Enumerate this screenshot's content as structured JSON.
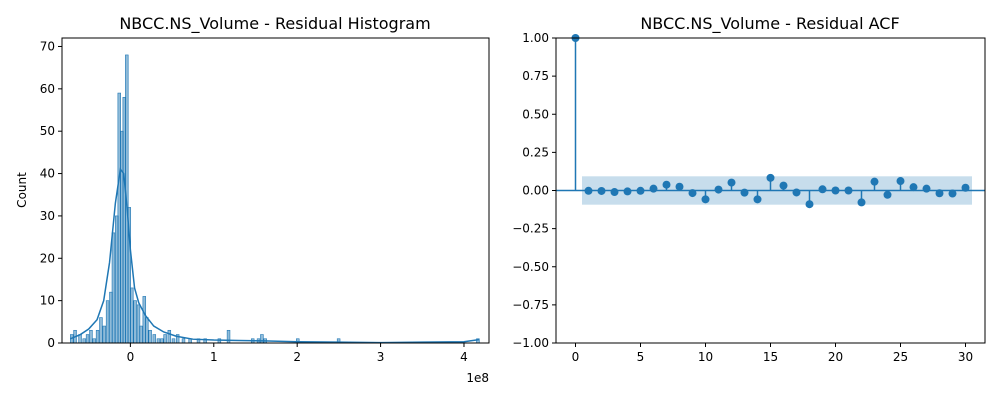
{
  "chart_data": [
    {
      "type": "bar",
      "title": "NBCC.NS_Volume - Residual Histogram",
      "xlabel": "",
      "ylabel": "Count",
      "x_offset_text": "1e8",
      "xlim": [
        -0.82,
        4.3
      ],
      "ylim": [
        0,
        72
      ],
      "x_ticks": [
        0,
        1,
        2,
        3,
        4
      ],
      "x_tick_labels": [
        "0",
        "1",
        "2",
        "3",
        "4"
      ],
      "y_ticks": [
        0,
        10,
        20,
        30,
        40,
        50,
        60,
        70
      ],
      "y_tick_labels": [
        "0",
        "10",
        "20",
        "30",
        "40",
        "50",
        "60",
        "70"
      ],
      "bin_width": 0.0338,
      "bins": [
        [
          -0.72,
          2
        ],
        [
          -0.68,
          3
        ],
        [
          -0.62,
          2
        ],
        [
          -0.57,
          1
        ],
        [
          -0.53,
          2
        ],
        [
          -0.49,
          3
        ],
        [
          -0.45,
          1
        ],
        [
          -0.41,
          3
        ],
        [
          -0.37,
          6
        ],
        [
          -0.33,
          4
        ],
        [
          -0.29,
          10
        ],
        [
          -0.25,
          12
        ],
        [
          -0.22,
          26
        ],
        [
          -0.18,
          30
        ],
        [
          -0.15,
          59
        ],
        [
          -0.12,
          50
        ],
        [
          -0.09,
          58
        ],
        [
          -0.06,
          68
        ],
        [
          -0.03,
          32
        ],
        [
          0.0,
          13
        ],
        [
          0.04,
          10
        ],
        [
          0.08,
          9
        ],
        [
          0.11,
          4
        ],
        [
          0.15,
          11
        ],
        [
          0.18,
          6
        ],
        [
          0.22,
          3
        ],
        [
          0.27,
          2
        ],
        [
          0.32,
          1
        ],
        [
          0.36,
          1
        ],
        [
          0.4,
          2
        ],
        [
          0.45,
          3
        ],
        [
          0.5,
          1
        ],
        [
          0.55,
          2
        ],
        [
          0.62,
          1
        ],
        [
          0.7,
          1
        ],
        [
          0.8,
          1
        ],
        [
          0.88,
          1
        ],
        [
          1.05,
          1
        ],
        [
          1.16,
          3
        ],
        [
          1.45,
          1
        ],
        [
          1.52,
          1
        ],
        [
          1.56,
          2
        ],
        [
          1.6,
          1
        ],
        [
          1.99,
          1
        ],
        [
          2.48,
          1
        ],
        [
          4.15,
          1
        ]
      ],
      "kde": {
        "x": [
          -0.72,
          -0.6,
          -0.5,
          -0.4,
          -0.32,
          -0.25,
          -0.18,
          -0.12,
          -0.08,
          -0.04,
          0.0,
          0.05,
          0.1,
          0.18,
          0.28,
          0.4,
          0.55,
          0.75,
          1.0,
          1.3,
          1.6,
          2.0,
          2.5,
          3.0,
          3.5,
          4.0,
          4.18
        ],
        "y": [
          1.0,
          2.0,
          3.3,
          5.5,
          10.0,
          19.0,
          33.0,
          41.0,
          40.0,
          32.0,
          22.0,
          13.0,
          9.5,
          6.5,
          4.0,
          2.6,
          1.6,
          0.9,
          0.7,
          0.6,
          0.5,
          0.3,
          0.2,
          0.1,
          0.2,
          0.3,
          0.8
        ]
      },
      "bar_color": "#1f77b4",
      "line_color": "#1f77b4"
    },
    {
      "type": "scatter",
      "title": "NBCC.NS_Volume - Residual ACF",
      "xlabel": "",
      "ylabel": "",
      "xlim": [
        -1.5,
        31.5
      ],
      "ylim": [
        -1.0,
        1.0
      ],
      "x_ticks": [
        0,
        5,
        10,
        15,
        20,
        25,
        30
      ],
      "x_tick_labels": [
        "0",
        "5",
        "10",
        "15",
        "20",
        "25",
        "30"
      ],
      "y_ticks": [
        -1.0,
        -0.75,
        -0.5,
        -0.25,
        0.0,
        0.25,
        0.5,
        0.75,
        1.0
      ],
      "y_tick_labels": [
        "−1.00",
        "−0.75",
        "−0.50",
        "−0.25",
        "0.00",
        "0.25",
        "0.50",
        "0.75",
        "1.00"
      ],
      "lags": [
        0,
        1,
        2,
        3,
        4,
        5,
        6,
        7,
        8,
        9,
        10,
        11,
        12,
        13,
        14,
        15,
        16,
        17,
        18,
        19,
        20,
        21,
        22,
        23,
        24,
        25,
        26,
        27,
        28,
        29,
        30
      ],
      "acf": [
        1.0,
        -0.002,
        -0.003,
        -0.01,
        -0.006,
        -0.002,
        0.012,
        0.038,
        0.025,
        -0.017,
        -0.058,
        0.006,
        0.052,
        -0.014,
        -0.058,
        0.083,
        0.032,
        -0.013,
        -0.09,
        0.008,
        0.0,
        0.0,
        -0.078,
        0.058,
        -0.028,
        0.062,
        0.022,
        0.012,
        -0.018,
        -0.02,
        0.018
      ],
      "confidence_band": [
        -0.093,
        0.093
      ],
      "marker_color": "#1f77b4",
      "band_color": "#a8c6e0"
    }
  ]
}
